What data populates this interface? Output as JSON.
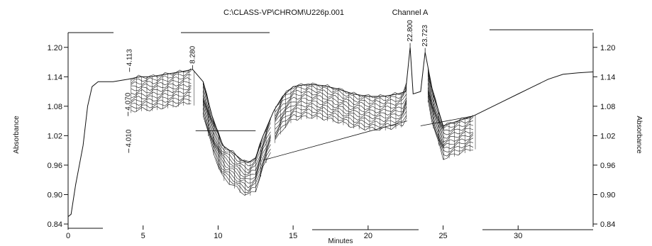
{
  "chart_data": {
    "type": "line",
    "title": "C:\\CLASS-VP\\CHROM\\U226p.001",
    "channel_label": "Channel A",
    "xlabel": "Minutes",
    "ylabel_left": "Absorbance",
    "ylabel_right": "Absorbance",
    "xlim": [
      0,
      35
    ],
    "ylim": [
      0.84,
      1.23
    ],
    "x_ticks": [
      {
        "value": 0,
        "label": "0"
      },
      {
        "value": 5,
        "label": "5"
      },
      {
        "value": 10,
        "label": "10"
      },
      {
        "value": 15,
        "label": "15"
      },
      {
        "value": 20,
        "label": "20"
      },
      {
        "value": 25,
        "label": "25"
      },
      {
        "value": 30,
        "label": "30"
      }
    ],
    "y_left_ticks": [
      {
        "value": 1.2,
        "label": "1.20"
      },
      {
        "value": 1.14,
        "label": "1.14"
      },
      {
        "value": 1.08,
        "label": "1.08"
      },
      {
        "value": 1.02,
        "label": "1.02"
      },
      {
        "value": 0.96,
        "label": "0.96"
      },
      {
        "value": 0.9,
        "label": "0.90"
      },
      {
        "value": 0.84,
        "label": "0.84"
      }
    ],
    "y_right_ticks": [
      {
        "value": 1.2,
        "label": "1.20"
      },
      {
        "value": 1.14,
        "label": "1.14"
      },
      {
        "value": 1.08,
        "label": "1.08"
      },
      {
        "value": 1.02,
        "label": "1.02"
      },
      {
        "value": 0.96,
        "label": "0.96"
      },
      {
        "value": 0.9,
        "label": "0.90"
      },
      {
        "value": 0.84,
        "label": "0.84"
      }
    ],
    "series": [
      {
        "x": [
          0,
          0.2,
          0.5,
          1.0,
          1.3,
          1.6,
          2.0,
          3.0,
          4.0,
          4.8,
          5.5,
          6.5,
          7.5,
          8.3,
          9.0,
          9.6,
          10.3,
          11.0,
          11.6,
          12.0,
          12.5,
          13.0,
          13.7,
          14.3,
          15.0,
          16.0,
          17.0,
          18.0,
          19.0,
          20.0,
          21.0,
          22.0,
          22.5,
          22.8,
          23.0,
          23.5,
          23.8,
          24.3,
          25.0,
          26.0,
          27.0,
          28.0,
          29.0,
          30.0,
          31.0,
          32.0,
          33.0,
          34.0,
          35.0
        ],
        "y": [
          0.855,
          0.86,
          0.92,
          1.0,
          1.08,
          1.12,
          1.13,
          1.13,
          1.135,
          1.14,
          1.14,
          1.145,
          1.15,
          1.155,
          1.13,
          1.06,
          1.0,
          0.985,
          0.97,
          0.965,
          0.975,
          1.02,
          1.07,
          1.1,
          1.12,
          1.125,
          1.122,
          1.115,
          1.105,
          1.1,
          1.1,
          1.105,
          1.11,
          1.2,
          1.105,
          1.11,
          1.19,
          1.11,
          1.04,
          1.05,
          1.06,
          1.075,
          1.09,
          1.105,
          1.12,
          1.135,
          1.145,
          1.148,
          1.15
        ]
      }
    ],
    "peak_labels": [
      {
        "x": 4.1,
        "y": 1.15,
        "label": "4.113"
      },
      {
        "x": 4.0,
        "y": 1.06,
        "label": "4.070"
      },
      {
        "x": 4.05,
        "y": 0.985,
        "label": "4.010"
      },
      {
        "x": 8.3,
        "y": 1.155,
        "label": "8.280"
      },
      {
        "x": 22.8,
        "y": 1.2,
        "label": "22.800"
      },
      {
        "x": 23.8,
        "y": 1.19,
        "label": "23.723"
      }
    ],
    "grid": false,
    "line_color": "#111111"
  }
}
